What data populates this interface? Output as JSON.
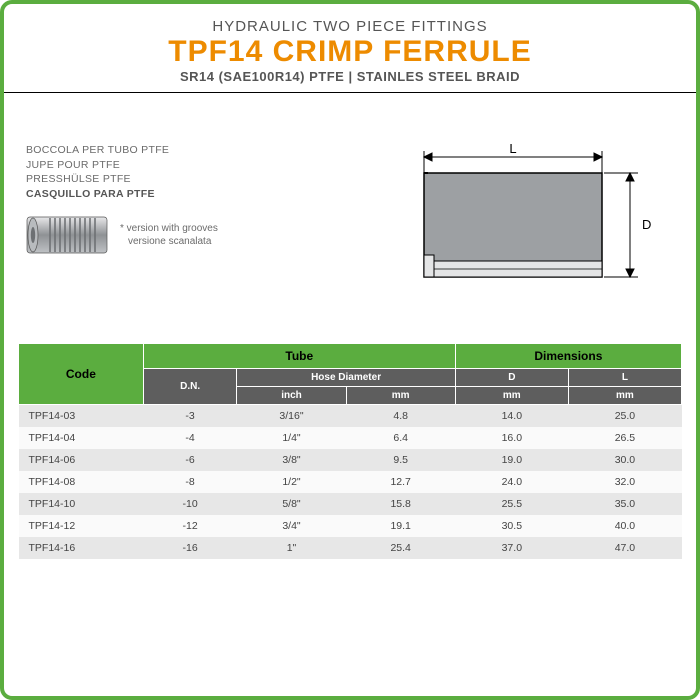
{
  "header": {
    "line1": "HYDRAULIC TWO PIECE FITTINGS",
    "title": "TPF14 CRIMP FERRULE",
    "line3": "SR14 (SAE100R14) PTFE | STAINLES STEEL BRAID"
  },
  "translations": {
    "it": "BOCCOLA PER TUBO PTFE",
    "fr": "JUPE POUR PTFE",
    "de": "PRESSHÜLSE PTFE",
    "es": "CASQUILLO PARA PTFE"
  },
  "note": {
    "line1": "* version with grooves",
    "line2": "versione scanalata"
  },
  "diagram": {
    "label_L": "L",
    "label_D": "D",
    "fill": "#9da0a3",
    "line": "#000000"
  },
  "colors": {
    "accent": "#5bad3f",
    "title": "#ed8b00",
    "subheader": "#5e5e5e",
    "row_odd": "#e7e7e7",
    "row_even": "#fafafa"
  },
  "table": {
    "headers": {
      "code": "Code",
      "tube": "Tube",
      "dimensions": "Dimensions",
      "dn": "D.N.",
      "hose_diameter": "Hose Diameter",
      "inch": "inch",
      "mm": "mm",
      "D": "D",
      "L": "L"
    },
    "col_widths_pct": [
      16,
      12,
      14,
      14,
      14.5,
      14.5
    ],
    "rows": [
      {
        "code": "TPF14-03",
        "dn": "-3",
        "inch": "3/16\"",
        "mm": "4.8",
        "D": "14.0",
        "L": "25.0"
      },
      {
        "code": "TPF14-04",
        "dn": "-4",
        "inch": "1/4\"",
        "mm": "6.4",
        "D": "16.0",
        "L": "26.5"
      },
      {
        "code": "TPF14-06",
        "dn": "-6",
        "inch": "3/8\"",
        "mm": "9.5",
        "D": "19.0",
        "L": "30.0"
      },
      {
        "code": "TPF14-08",
        "dn": "-8",
        "inch": "1/2\"",
        "mm": "12.7",
        "D": "24.0",
        "L": "32.0"
      },
      {
        "code": "TPF14-10",
        "dn": "-10",
        "inch": "5/8\"",
        "mm": "15.8",
        "D": "25.5",
        "L": "35.0"
      },
      {
        "code": "TPF14-12",
        "dn": "-12",
        "inch": "3/4\"",
        "mm": "19.1",
        "D": "30.5",
        "L": "40.0"
      },
      {
        "code": "TPF14-16",
        "dn": "-16",
        "inch": "1\"",
        "mm": "25.4",
        "D": "37.0",
        "L": "47.0"
      }
    ]
  }
}
